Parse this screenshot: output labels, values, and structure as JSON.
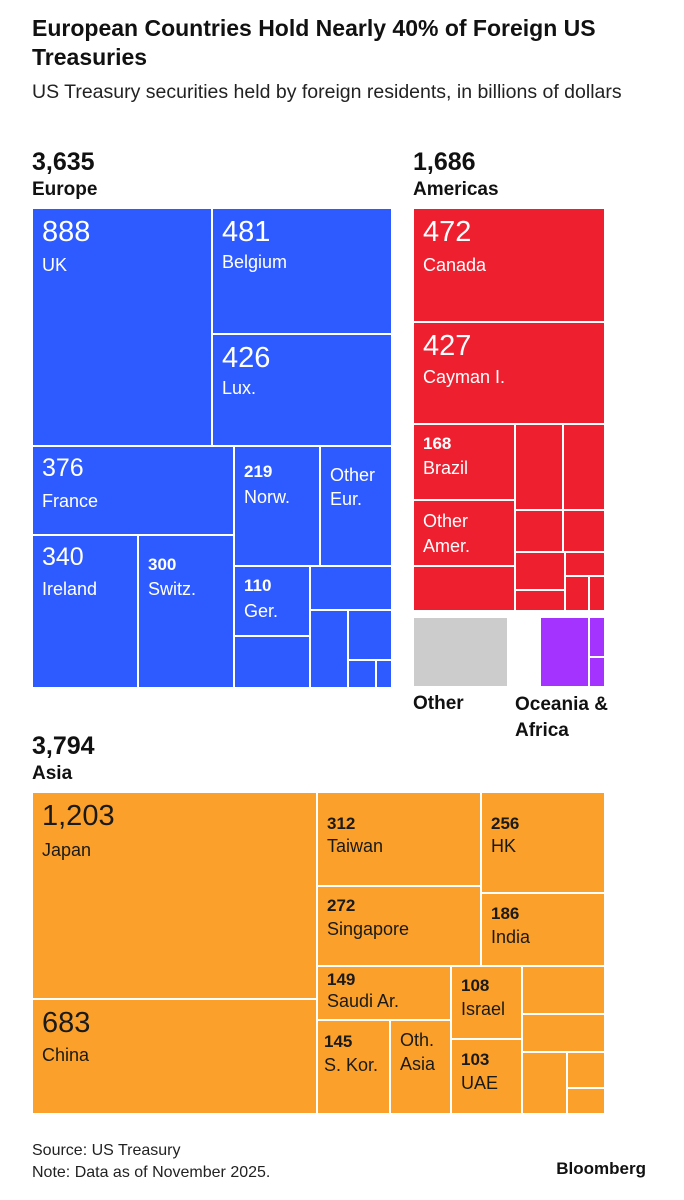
{
  "title": "European Countries Hold Nearly 40% of Foreign US Treasuries",
  "subtitle": "US Treasury securities held by foreign residents, in billions of dollars",
  "chart_data": {
    "type": "treemap",
    "regions": [
      {
        "name": "Europe",
        "value": "3,635",
        "color": "#2e5bff",
        "items": [
          {
            "label": "UK",
            "value": 888
          },
          {
            "label": "Belgium",
            "value": 481
          },
          {
            "label": "Lux.",
            "value": 426
          },
          {
            "label": "France",
            "value": 376
          },
          {
            "label": "Ireland",
            "value": 340
          },
          {
            "label": "Switz.",
            "value": 300
          },
          {
            "label": "Norw.",
            "value": 219
          },
          {
            "label": "Other Eur.",
            "value": null
          },
          {
            "label": "Ger.",
            "value": 110
          }
        ]
      },
      {
        "name": "Americas",
        "value": "1,686",
        "color": "#ee2030",
        "items": [
          {
            "label": "Canada",
            "value": 472
          },
          {
            "label": "Cayman I.",
            "value": 427
          },
          {
            "label": "Brazil",
            "value": 168
          },
          {
            "label": "Other Amer.",
            "value": null
          }
        ]
      },
      {
        "name": "Other",
        "value": null,
        "color": "#cccccc",
        "items": []
      },
      {
        "name": "Oceania & Africa",
        "value": null,
        "color": "#a533ff",
        "items": []
      },
      {
        "name": "Asia",
        "value": "3,794",
        "color": "#fba02a",
        "items": [
          {
            "label": "Japan",
            "value": "1,203"
          },
          {
            "label": "China",
            "value": 683
          },
          {
            "label": "Taiwan",
            "value": 312
          },
          {
            "label": "HK",
            "value": 256
          },
          {
            "label": "Singapore",
            "value": 272
          },
          {
            "label": "India",
            "value": 186
          },
          {
            "label": "Saudi Ar.",
            "value": 149
          },
          {
            "label": "Israel",
            "value": 108
          },
          {
            "label": "S. Kor.",
            "value": 145
          },
          {
            "label": "Oth. Asia",
            "value": null
          },
          {
            "label": "UAE",
            "value": 103
          }
        ]
      }
    ]
  },
  "source": "Source: US Treasury",
  "note": "Note: Data as of November 2025.",
  "brand": "Bloomberg"
}
